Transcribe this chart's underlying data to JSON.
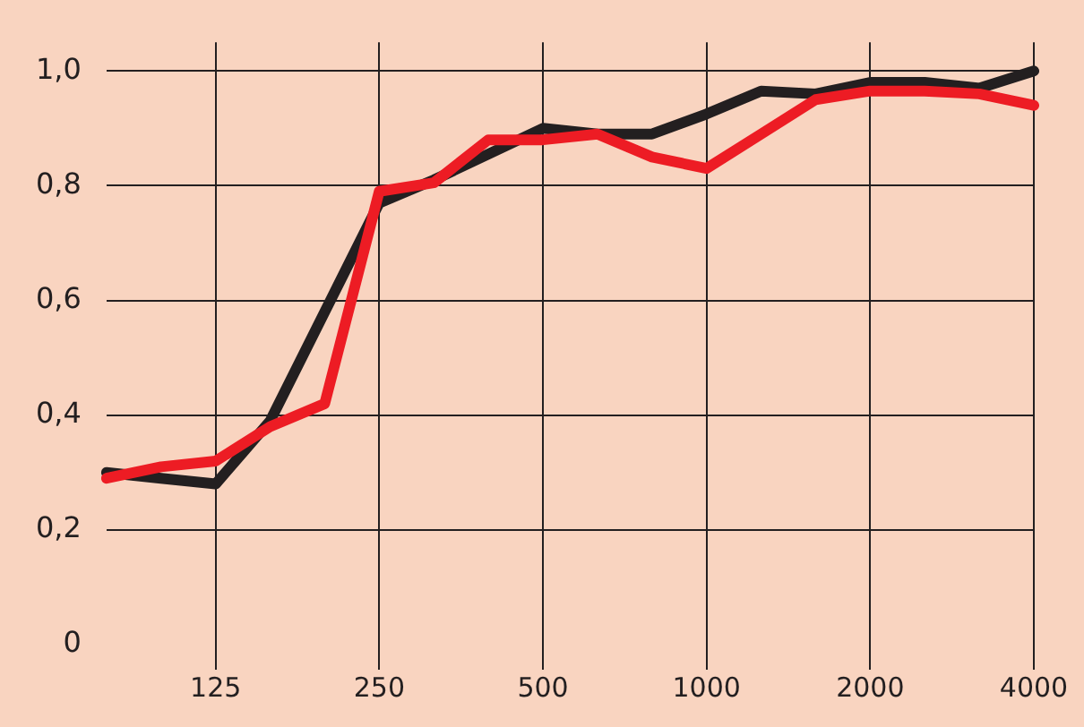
{
  "chart_data": {
    "type": "line",
    "categories": [
      null,
      null,
      "125",
      null,
      null,
      "250",
      null,
      null,
      "500",
      null,
      null,
      "1000",
      null,
      null,
      "2000",
      null,
      null,
      "4000"
    ],
    "series": [
      {
        "color": "#ed1c24",
        "values": [
          0.29,
          0.31,
          0.32,
          0.38,
          0.42,
          0.79,
          0.805,
          0.88,
          0.88,
          0.89,
          0.85,
          0.83,
          0.89,
          0.95,
          0.965,
          0.965,
          0.96,
          0.94
        ]
      },
      {
        "color": "#231f20",
        "values": [
          0.3,
          0.29,
          0.28,
          0.39,
          0.58,
          0.77,
          0.81,
          0.855,
          0.9,
          0.89,
          0.89,
          0.925,
          0.965,
          0.96,
          0.98,
          0.98,
          0.97,
          1.0
        ]
      }
    ],
    "ylim": [
      0,
      1.05
    ],
    "yticks": [
      0,
      {
        "value": 0.2,
        "label": "0,2"
      },
      {
        "value": 0.4,
        "label": "0,4"
      },
      {
        "value": 0.6,
        "label": "0,6"
      },
      {
        "value": 0.8,
        "label": "0,8"
      },
      {
        "value": 1,
        "label": "1,0"
      }
    ],
    "grid": true,
    "legend": false,
    "marker": "none",
    "line_style": "solid"
  }
}
